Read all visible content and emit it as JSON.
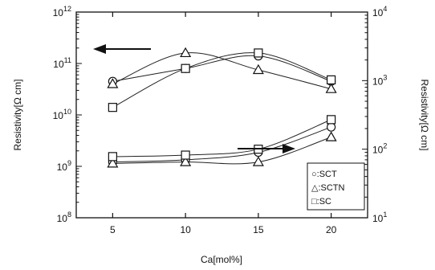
{
  "chart_data": {
    "type": "line",
    "xlabel": "Ca[mol%]",
    "ylabel_left": "Resistivity[Ω cm]",
    "ylabel_right": "Resistivity[Ω cm]",
    "x_ticks": [
      "5",
      "10",
      "15",
      "20"
    ],
    "xlim": [
      2.5,
      22.5
    ],
    "left_axis": {
      "scale": "log",
      "range": [
        100000000.0,
        1000000000000.0
      ],
      "ticks": [
        {
          "value": 100000000.0,
          "base": "10",
          "exp": "8"
        },
        {
          "value": 1000000000.0,
          "base": "10",
          "exp": "9"
        },
        {
          "value": 10000000000.0,
          "base": "10",
          "exp": "10"
        },
        {
          "value": 100000000000.0,
          "base": "10",
          "exp": "11"
        },
        {
          "value": 1000000000000.0,
          "base": "10",
          "exp": "12"
        }
      ]
    },
    "right_axis": {
      "scale": "log",
      "range": [
        10,
        10000
      ],
      "ticks": [
        {
          "value": 10,
          "base": "10",
          "exp": "1"
        },
        {
          "value": 100,
          "base": "10",
          "exp": "2"
        },
        {
          "value": 1000,
          "base": "10",
          "exp": "3"
        },
        {
          "value": 10000,
          "base": "10",
          "exp": "4"
        }
      ]
    },
    "series": [
      {
        "name": "SCT",
        "marker": "circle",
        "axis": "left",
        "x": [
          5,
          10,
          15,
          20
        ],
        "y": [
          45000000000.0,
          80000000000.0,
          140000000000.0,
          45000000000.0
        ]
      },
      {
        "name": "SCTN",
        "marker": "triangle",
        "axis": "left",
        "x": [
          5,
          10,
          15,
          20
        ],
        "y": [
          40000000000.0,
          160000000000.0,
          75000000000.0,
          32000000000.0
        ]
      },
      {
        "name": "SC",
        "marker": "square",
        "axis": "left",
        "x": [
          5,
          10,
          15,
          20
        ],
        "y": [
          14000000000.0,
          80000000000.0,
          160000000000.0,
          48000000000.0
        ]
      },
      {
        "name": "SCT",
        "marker": "circle",
        "axis": "right",
        "x": [
          5,
          10,
          15,
          20
        ],
        "y": [
          65,
          70,
          90,
          210
        ]
      },
      {
        "name": "SCTN",
        "marker": "triangle",
        "axis": "right",
        "x": [
          5,
          10,
          15,
          20
        ],
        "y": [
          62,
          65,
          65,
          150
        ]
      },
      {
        "name": "SC",
        "marker": "square",
        "axis": "right",
        "x": [
          5,
          10,
          15,
          20
        ],
        "y": [
          78,
          82,
          100,
          270
        ]
      }
    ],
    "legend": {
      "placement": "bottom-right",
      "entries": [
        {
          "symbol": "○",
          "label": ":SCT"
        },
        {
          "symbol": "△",
          "label": ":SCTN"
        },
        {
          "symbol": "□",
          "label": ":SC"
        }
      ]
    },
    "annotations": [
      {
        "type": "arrow",
        "direction": "left",
        "meaning": "left-axis series"
      },
      {
        "type": "arrow",
        "direction": "right",
        "meaning": "right-axis series"
      }
    ]
  }
}
